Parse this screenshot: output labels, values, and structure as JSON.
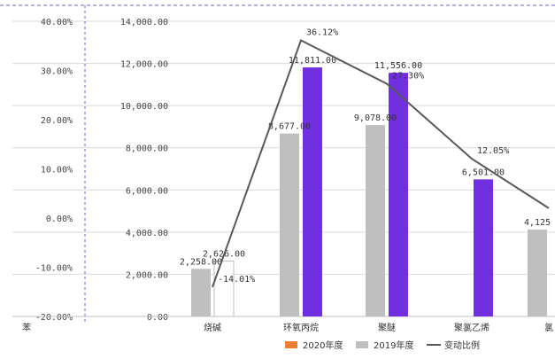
{
  "chart_data": {
    "type": "bar",
    "categories": [
      "苯",
      "烧碱",
      "环氧丙烷",
      "聚醚",
      "聚氯乙烯",
      "氯"
    ],
    "series": [
      {
        "name": "2020年度",
        "kind": "bar",
        "axis": "left",
        "color": "#ED7D31",
        "values": [
          null,
          null,
          null,
          null,
          null,
          null
        ]
      },
      {
        "name": "2019年度",
        "kind": "bar",
        "axis": "left",
        "color": "#BFBFBF",
        "values": [
          null,
          2258.0,
          8677.0,
          9078.0,
          null,
          4125.0
        ]
      },
      {
        "name": "变动比例",
        "kind": "line",
        "axis": "right",
        "color": "#595959",
        "values": [
          null,
          -14.01,
          36.12,
          27.3,
          12.05,
          null
        ]
      }
    ],
    "extra_bars": [
      {
        "category": "烧碱",
        "value": 2626.0,
        "color": "#FFFFFF"
      },
      {
        "category": "环氧丙烷",
        "value": 11811.0,
        "color": "#7030E0"
      },
      {
        "category": "聚醚",
        "value": 11556.0,
        "color": "#7030E0"
      },
      {
        "category": "聚氯乙烯",
        "value": 6501.0,
        "color": "#7030E0"
      }
    ],
    "left_axis": {
      "ylim": [
        0,
        14000
      ],
      "ticks": [
        "0.00",
        "2,000.00",
        "4,000.00",
        "6,000.00",
        "8,000.00",
        "10,000.00",
        "12,000.00",
        "14,000.00"
      ]
    },
    "right_axis": {
      "ylim": [
        -20,
        40
      ],
      "ticks": [
        "-20.00%",
        "-10.00%",
        "0.00%",
        "10.00%",
        "20.00%",
        "30.00%",
        "40.00%"
      ]
    },
    "data_labels": {
      "bars_2019": [
        "2,258.00",
        "8,677.00",
        "9,078.00",
        "4,125"
      ],
      "bars_extra": [
        "2,626.00",
        "11,811.00",
        "11,556.00",
        "6,501.00"
      ],
      "line": [
        "-14.01%",
        "36.12%",
        "27.30%",
        "12.05%"
      ]
    },
    "legend": {
      "position": "bottom"
    },
    "grid": true
  }
}
